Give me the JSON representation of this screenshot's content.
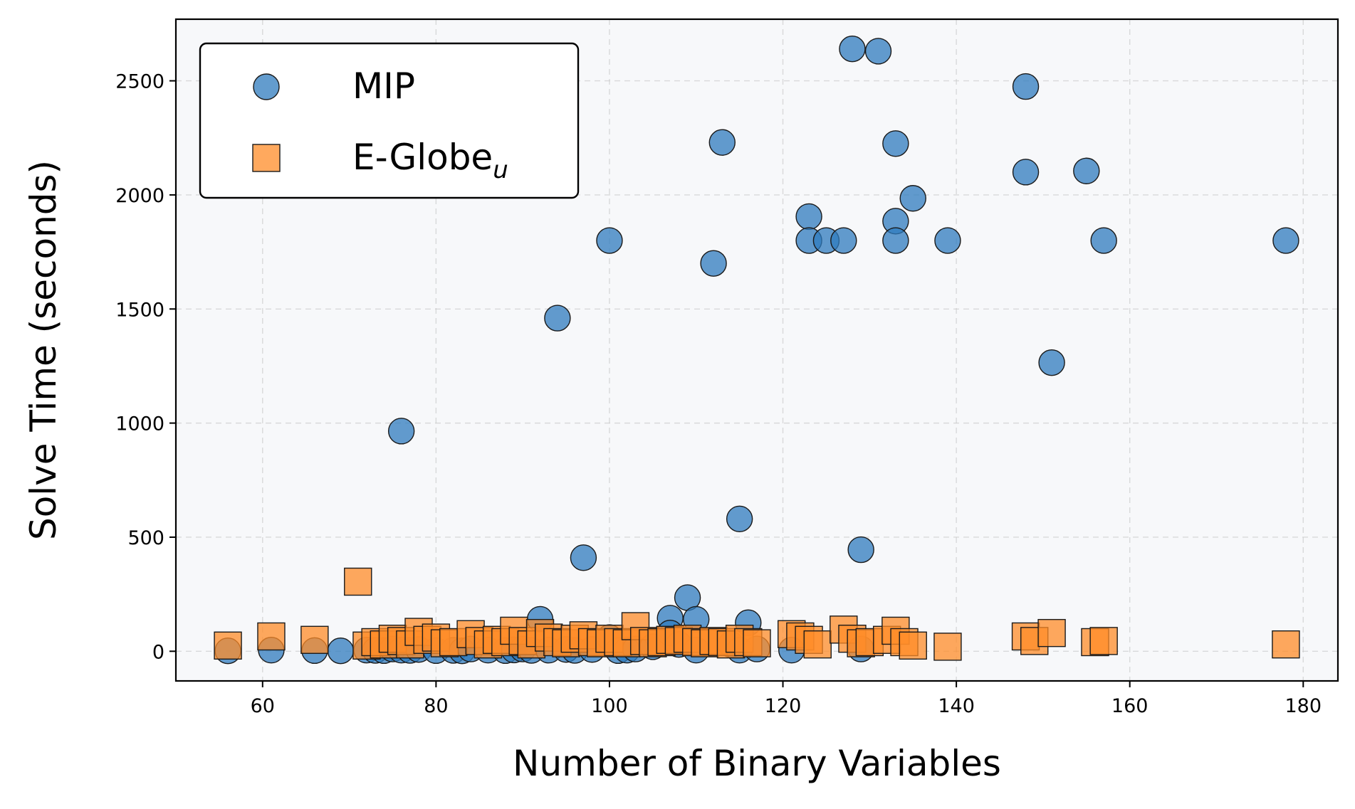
{
  "chart_data": {
    "type": "scatter",
    "title": "",
    "xlabel": "Number of Binary Variables",
    "ylabel": "Solve Time (seconds)",
    "xlim": [
      50,
      184
    ],
    "ylim": [
      -130,
      2770
    ],
    "xticks": [
      60,
      80,
      100,
      120,
      140,
      160,
      180
    ],
    "yticks": [
      0,
      500,
      1000,
      1500,
      2000,
      2500
    ],
    "grid": true,
    "legend": {
      "placement": "top-left",
      "entries": [
        {
          "label": "MIP",
          "marker": "circle"
        },
        {
          "label": "E-Globe",
          "subscript": "u",
          "marker": "square"
        }
      ]
    },
    "colors": {
      "MIP": "#2f7bbd",
      "E-Globe_u": "#ff8c28",
      "background": "#f7f8fa"
    },
    "series": [
      {
        "name": "MIP",
        "marker": "circle",
        "points": [
          [
            56,
            2
          ],
          [
            61,
            5
          ],
          [
            66,
            3
          ],
          [
            69,
            2
          ],
          [
            72,
            5
          ],
          [
            73,
            4
          ],
          [
            74,
            3
          ],
          [
            75,
            10
          ],
          [
            76,
            5
          ],
          [
            76,
            965
          ],
          [
            77,
            4
          ],
          [
            78,
            8
          ],
          [
            80,
            3
          ],
          [
            82,
            4
          ],
          [
            83,
            2
          ],
          [
            84,
            10
          ],
          [
            86,
            5
          ],
          [
            88,
            3
          ],
          [
            89,
            6
          ],
          [
            90,
            10
          ],
          [
            91,
            4
          ],
          [
            92,
            140
          ],
          [
            93,
            5
          ],
          [
            94,
            1460
          ],
          [
            95,
            8
          ],
          [
            96,
            4
          ],
          [
            97,
            410
          ],
          [
            98,
            8
          ],
          [
            100,
            1800
          ],
          [
            100,
            60
          ],
          [
            101,
            3
          ],
          [
            102,
            5
          ],
          [
            103,
            10
          ],
          [
            105,
            20
          ],
          [
            107,
            145
          ],
          [
            107,
            80
          ],
          [
            108,
            30
          ],
          [
            109,
            235
          ],
          [
            110,
            140
          ],
          [
            110,
            5
          ],
          [
            112,
            1700
          ],
          [
            113,
            2230
          ],
          [
            114,
            30
          ],
          [
            115,
            580
          ],
          [
            115,
            5
          ],
          [
            116,
            125
          ],
          [
            117,
            10
          ],
          [
            121,
            5
          ],
          [
            123,
            1905
          ],
          [
            123,
            1800
          ],
          [
            125,
            1800
          ],
          [
            127,
            1800
          ],
          [
            128,
            2640
          ],
          [
            129,
            445
          ],
          [
            129,
            10
          ],
          [
            131,
            2630
          ],
          [
            133,
            2225
          ],
          [
            133,
            1885
          ],
          [
            133,
            1800
          ],
          [
            135,
            1985
          ],
          [
            139,
            1800
          ],
          [
            148,
            2475
          ],
          [
            148,
            2100
          ],
          [
            151,
            1265
          ],
          [
            155,
            2105
          ],
          [
            157,
            1800
          ],
          [
            178,
            1800
          ]
        ]
      },
      {
        "name": "E-Globe_u",
        "marker": "square",
        "points": [
          [
            56,
            25
          ],
          [
            61,
            65
          ],
          [
            66,
            50
          ],
          [
            71,
            305
          ],
          [
            72,
            25
          ],
          [
            73,
            40
          ],
          [
            74,
            30
          ],
          [
            75,
            55
          ],
          [
            76,
            45
          ],
          [
            77,
            30
          ],
          [
            78,
            85
          ],
          [
            79,
            50
          ],
          [
            80,
            60
          ],
          [
            81,
            35
          ],
          [
            82,
            40
          ],
          [
            84,
            75
          ],
          [
            85,
            45
          ],
          [
            86,
            30
          ],
          [
            87,
            50
          ],
          [
            88,
            40
          ],
          [
            89,
            90
          ],
          [
            90,
            45
          ],
          [
            91,
            30
          ],
          [
            92,
            80
          ],
          [
            93,
            60
          ],
          [
            94,
            40
          ],
          [
            95,
            35
          ],
          [
            96,
            55
          ],
          [
            97,
            70
          ],
          [
            98,
            40
          ],
          [
            99,
            35
          ],
          [
            100,
            55
          ],
          [
            101,
            40
          ],
          [
            102,
            35
          ],
          [
            103,
            110
          ],
          [
            104,
            45
          ],
          [
            105,
            35
          ],
          [
            106,
            40
          ],
          [
            107,
            50
          ],
          [
            108,
            45
          ],
          [
            109,
            55
          ],
          [
            110,
            40
          ],
          [
            111,
            35
          ],
          [
            112,
            45
          ],
          [
            113,
            40
          ],
          [
            114,
            30
          ],
          [
            115,
            55
          ],
          [
            116,
            40
          ],
          [
            117,
            35
          ],
          [
            121,
            75
          ],
          [
            122,
            65
          ],
          [
            123,
            50
          ],
          [
            124,
            30
          ],
          [
            127,
            95
          ],
          [
            128,
            55
          ],
          [
            129,
            35
          ],
          [
            130,
            40
          ],
          [
            132,
            50
          ],
          [
            133,
            90
          ],
          [
            134,
            40
          ],
          [
            135,
            25
          ],
          [
            139,
            20
          ],
          [
            148,
            65
          ],
          [
            149,
            45
          ],
          [
            151,
            80
          ],
          [
            156,
            40
          ],
          [
            157,
            45
          ],
          [
            178,
            30
          ]
        ]
      }
    ]
  }
}
